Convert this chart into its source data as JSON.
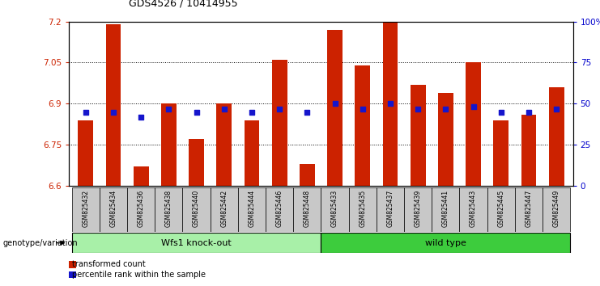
{
  "title": "GDS4526 / 10414955",
  "samples": [
    "GSM825432",
    "GSM825434",
    "GSM825436",
    "GSM825438",
    "GSM825440",
    "GSM825442",
    "GSM825444",
    "GSM825446",
    "GSM825448",
    "GSM825433",
    "GSM825435",
    "GSM825437",
    "GSM825439",
    "GSM825441",
    "GSM825443",
    "GSM825445",
    "GSM825447",
    "GSM825449"
  ],
  "bar_values": [
    6.84,
    7.19,
    6.67,
    6.9,
    6.77,
    6.9,
    6.84,
    7.06,
    6.68,
    7.17,
    7.04,
    7.2,
    6.97,
    6.94,
    7.05,
    6.84,
    6.86,
    6.96
  ],
  "dot_values": [
    6.87,
    6.87,
    6.85,
    6.88,
    6.87,
    6.88,
    6.87,
    6.88,
    6.87,
    6.9,
    6.88,
    6.9,
    6.88,
    6.88,
    6.89,
    6.87,
    6.87,
    6.88
  ],
  "bar_color": "#cc2200",
  "dot_color": "#1515cc",
  "ylim_left": [
    6.6,
    7.2
  ],
  "ylim_right": [
    0,
    100
  ],
  "yticks_left": [
    6.6,
    6.75,
    6.9,
    7.05,
    7.2
  ],
  "yticks_right": [
    0,
    25,
    50,
    75,
    100
  ],
  "ytick_labels_left": [
    "6.6",
    "6.75",
    "6.9",
    "7.05",
    "7.2"
  ],
  "ytick_labels_right": [
    "0",
    "25",
    "50",
    "75",
    "100%"
  ],
  "gridlines": [
    6.75,
    6.9,
    7.05
  ],
  "group1_label": "Wfs1 knock-out",
  "group2_label": "wild type",
  "group1_count": 9,
  "group2_count": 9,
  "genotype_label": "genotype/variation",
  "legend_bar_label": "transformed count",
  "legend_dot_label": "percentile rank within the sample",
  "group1_color": "#a8f0a8",
  "group2_color": "#3dcc3d",
  "xlabel_color": "#cc2200",
  "ylabel_right_color": "#0000cc",
  "bar_width": 0.55,
  "background_color": "#ffffff",
  "tick_label_bg": "#c8c8c8"
}
